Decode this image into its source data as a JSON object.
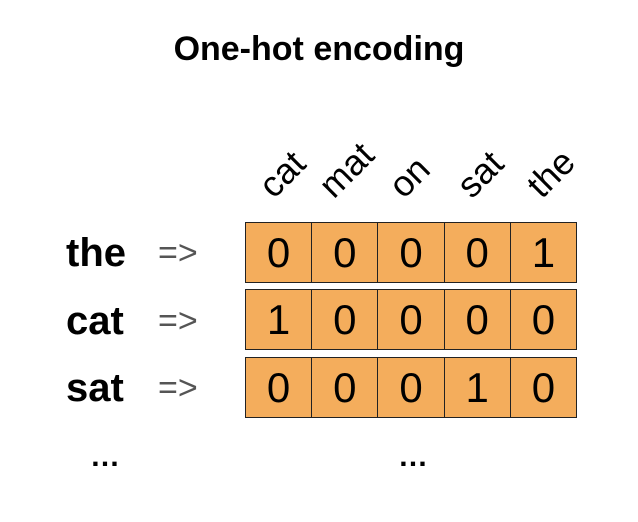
{
  "title": "One-hot encoding",
  "vocabulary": [
    "cat",
    "mat",
    "on",
    "sat",
    "the"
  ],
  "arrow": "=>",
  "rows": [
    {
      "word": "the",
      "vector": [
        "0",
        "0",
        "0",
        "0",
        "1"
      ]
    },
    {
      "word": "cat",
      "vector": [
        "1",
        "0",
        "0",
        "0",
        "0"
      ]
    },
    {
      "word": "sat",
      "vector": [
        "0",
        "0",
        "0",
        "1",
        "0"
      ]
    }
  ],
  "ellipsis": "…",
  "colors": {
    "cell_fill": "#f4ad5c",
    "border": "#222222",
    "arrow": "#555555"
  }
}
